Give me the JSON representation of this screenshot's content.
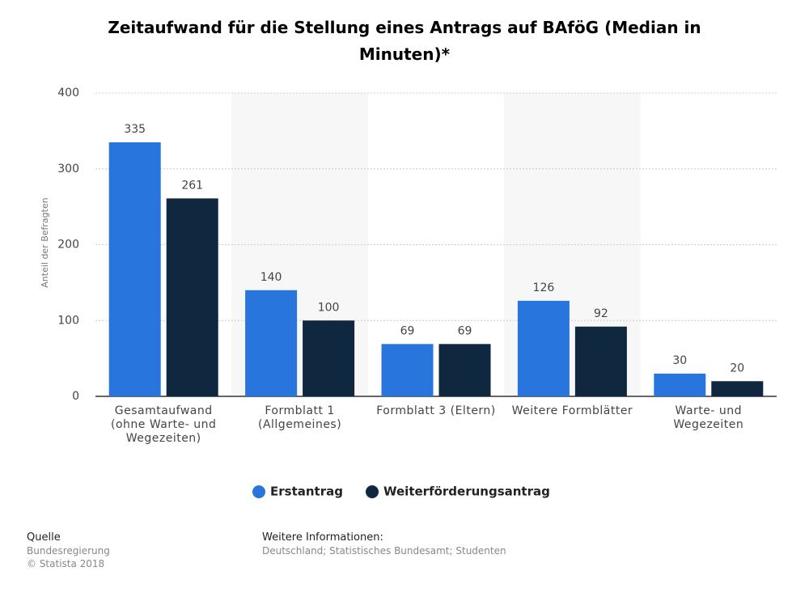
{
  "chart_data": {
    "type": "bar",
    "title": "Zeitaufwand für die Stellung eines Antrags auf BAföG (Median in Minuten)*",
    "y_label": "Anteil der Befragten",
    "categories": [
      "Gesamtaufwand (ohne Warte- und Wegezeiten)",
      "Formblatt 1 (Allgemeines)",
      "Formblatt 3 (Eltern)",
      "Weitere Formblätter",
      "Warte- und Wegezeiten"
    ],
    "series": [
      {
        "name": "Erstantrag",
        "color": "#2876dd",
        "values": [
          335,
          140,
          69,
          126,
          30
        ]
      },
      {
        "name": "Weiterförderungsantrag",
        "color": "#0f2840",
        "values": [
          261,
          100,
          69,
          92,
          20
        ]
      }
    ],
    "ylim": [
      0,
      400
    ],
    "yticks": [
      0,
      100,
      200,
      300,
      400
    ],
    "grid": true,
    "source_label": "Quelle",
    "source": "Bundesregierung",
    "copyright": "© Statista 2018",
    "info_label": "Weitere Informationen:",
    "info": "Deutschland; Statistisches Bundesamt; Studenten"
  }
}
